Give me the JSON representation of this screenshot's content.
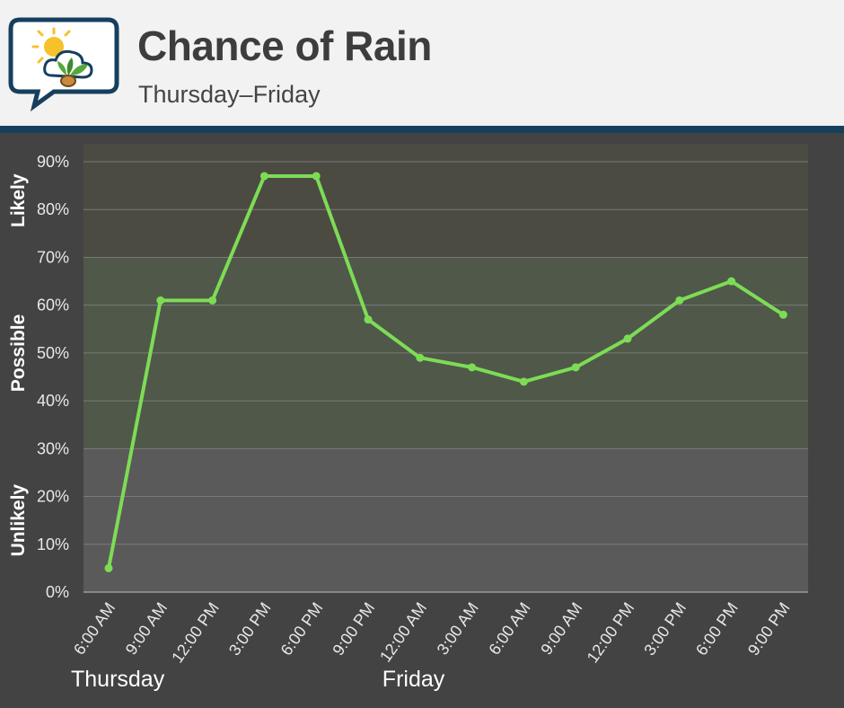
{
  "header": {
    "title": "Chance of Rain",
    "subtitle": "Thursday–Friday",
    "logo_icon": "sun-cloud-plant-speech-bubble-icon"
  },
  "colors": {
    "header_bg": "#f2f2f2",
    "header_bar": "#163f5d",
    "chart_bg": "#434343",
    "likely_band": "#4b4b42",
    "possible_band": "#4f5849",
    "unlikely_band": "#5a5a5a",
    "line": "#7ddc55"
  },
  "chart_data": {
    "type": "line",
    "title": "Chance of Rain",
    "subtitle": "Thursday–Friday",
    "categories": [
      "6:00 AM",
      "9:00 AM",
      "12:00 PM",
      "3:00 PM",
      "6:00 PM",
      "9:00 PM",
      "12:00 AM",
      "3:00 AM",
      "6:00 AM",
      "9:00 AM",
      "12:00 PM",
      "3:00 PM",
      "6:00 PM",
      "9:00 PM"
    ],
    "values": [
      5,
      61,
      61,
      87,
      87,
      57,
      49,
      47,
      44,
      47,
      53,
      61,
      65,
      58
    ],
    "y_ticks": [
      "0%",
      "10%",
      "20%",
      "30%",
      "40%",
      "50%",
      "60%",
      "70%",
      "80%",
      "90%"
    ],
    "ylim": [
      0,
      90
    ],
    "bands": [
      {
        "label": "Unlikely",
        "from": 0,
        "to": 30
      },
      {
        "label": "Possible",
        "from": 30,
        "to": 70
      },
      {
        "label": "Likely",
        "from": 70,
        "to": 90
      }
    ],
    "day_labels": [
      {
        "label": "Thursday",
        "at_index": 0
      },
      {
        "label": "Friday",
        "at_index": 6
      }
    ],
    "grid": true
  }
}
